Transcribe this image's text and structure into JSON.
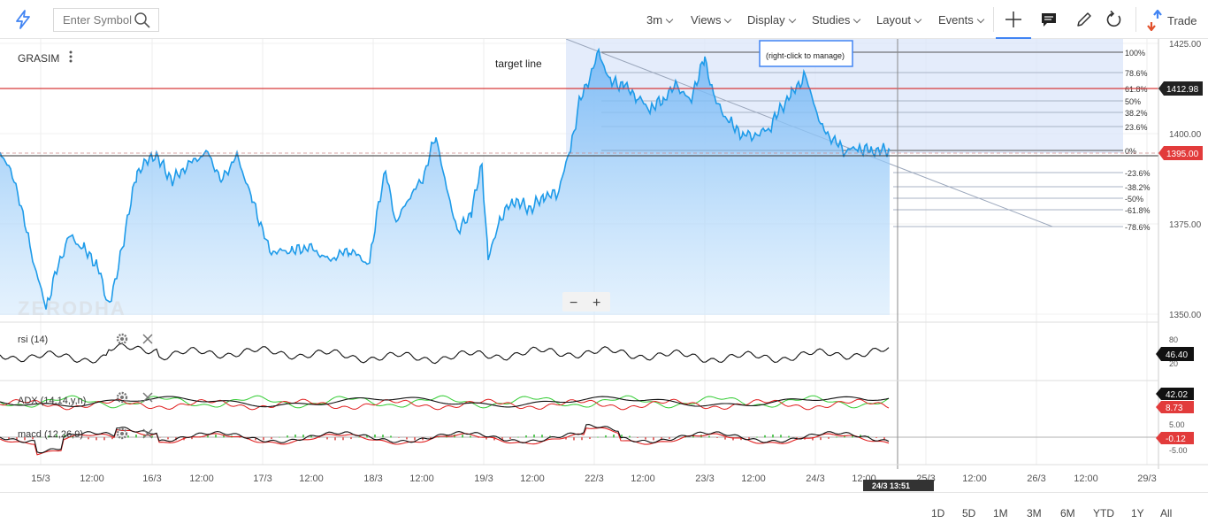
{
  "toolbar": {
    "search_placeholder": "Enter Symbol",
    "menus": [
      "3m",
      "Views",
      "Display",
      "Studies",
      "Layout",
      "Events"
    ],
    "trade_label": "Trade",
    "icons": [
      "bolt-icon",
      "search-icon",
      "crosshair-icon",
      "comment-icon",
      "pencil-icon",
      "undo-icon",
      "trade-arrows-icon"
    ]
  },
  "chart": {
    "symbol": "GRASIM",
    "annotation": "target line",
    "manage_tip": "(right-click to manage)",
    "watermark": "ZERODHA",
    "zoom_out": "−",
    "zoom_in": "+",
    "price_ticks": [
      "1425.00",
      "1400.00",
      "1375.00",
      "1350.00"
    ],
    "price_tags": {
      "target": "1412.98",
      "last": "1395.00"
    },
    "fib_levels": [
      "100%",
      "78.6%",
      "61.8%",
      "50%",
      "38.2%",
      "23.6%",
      "0%",
      "-23.6%",
      "-38.2%",
      "-50%",
      "-61.8%",
      "-78.6%"
    ],
    "x_labels": [
      "15/3",
      "12:00",
      "16/3",
      "12:00",
      "17/3",
      "12:00",
      "18/3",
      "12:00",
      "19/3",
      "12:00",
      "22/3",
      "12:00",
      "23/3",
      "12:00",
      "24/3",
      "12:00",
      "25/3",
      "12:00",
      "26/3",
      "12:00",
      "29/3"
    ],
    "crosshair_time": "24/3 13:51",
    "colors": {
      "line": "#1e9be9",
      "target": "#d63a3a",
      "tag_red": "#e23b3b",
      "tag_dark": "#222222"
    }
  },
  "studies": {
    "rsi": {
      "label": "rsi (14)",
      "value": "46.40",
      "ticks": [
        "80",
        "20"
      ]
    },
    "adx": {
      "label": "ADX (14,14,y,n)",
      "value": "42.02",
      "value2": "8.73"
    },
    "macd": {
      "label": "macd (12,26,9)",
      "value": "-0.12",
      "ticks": [
        "5.00",
        "-5.00"
      ]
    }
  },
  "ranges": [
    "1D",
    "5D",
    "1M",
    "3M",
    "6M",
    "YTD",
    "1Y",
    "All"
  ]
}
